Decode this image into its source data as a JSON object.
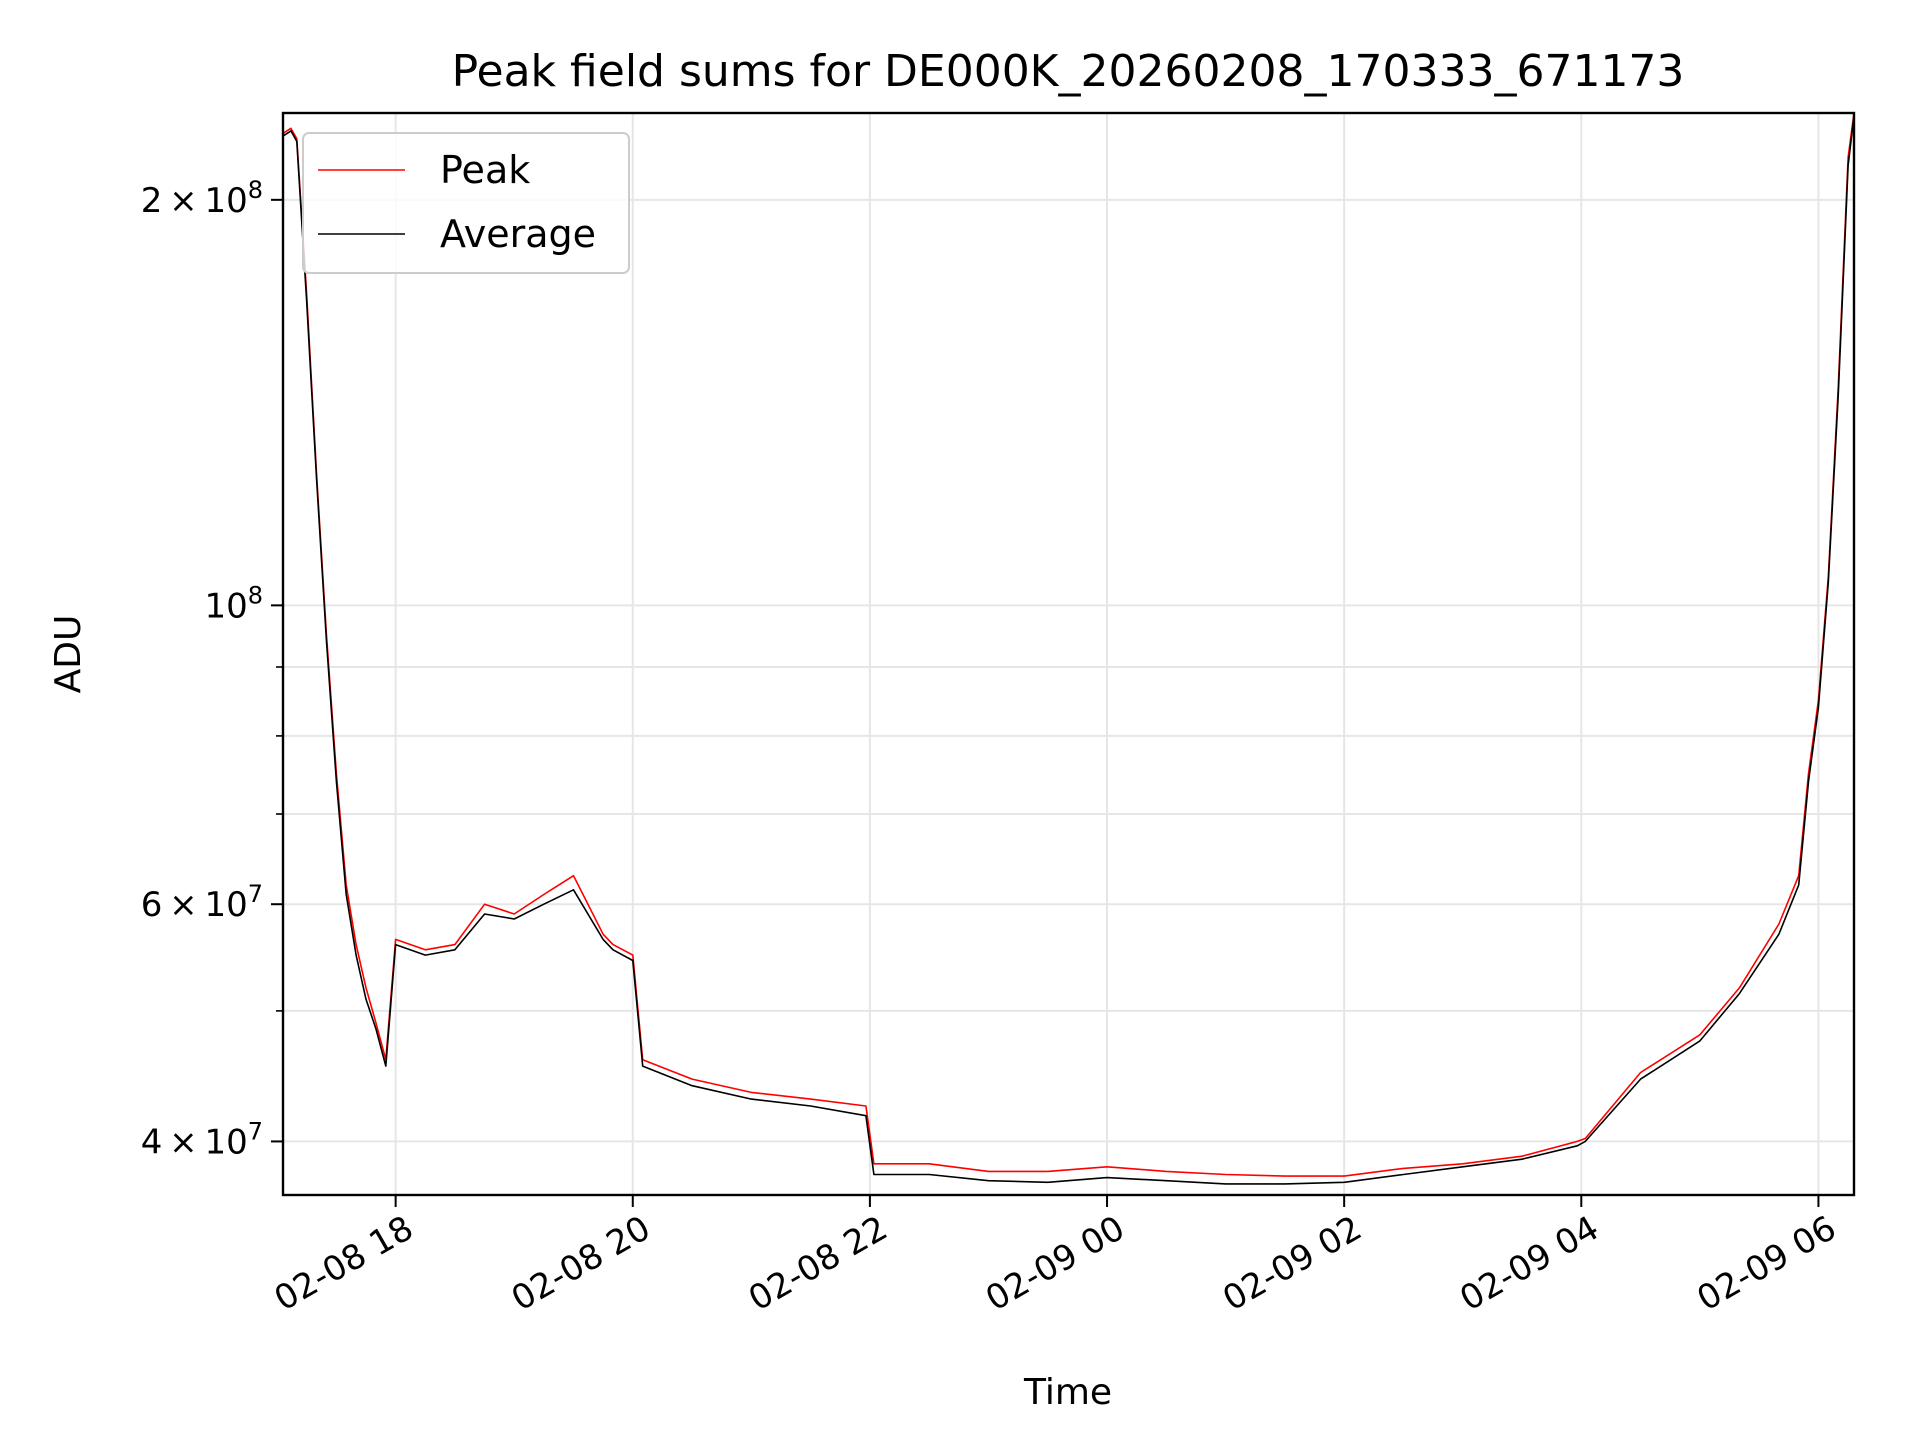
{
  "chart_data": {
    "type": "line",
    "title": "Peak field sums for DE000K_20260208_170333_671173",
    "xlabel": "Time",
    "ylabel": "ADU",
    "yscale": "log",
    "xlim": [
      "2026-02-08 17:03",
      "2026-02-09 06:18"
    ],
    "ylim": [
      36500000,
      232000000
    ],
    "grid": true,
    "legend": {
      "placement": "top-left",
      "entries": [
        "Peak",
        "Average"
      ]
    },
    "x_ticks": [
      "02-08 18",
      "02-08 20",
      "02-08 22",
      "02-09 00",
      "02-09 02",
      "02-09 04",
      "02-09 06"
    ],
    "y_ticks": [
      {
        "value": 40000000,
        "mantissa": "4",
        "exp": "7"
      },
      {
        "value": 60000000,
        "mantissa": "6",
        "exp": "7"
      },
      {
        "value": 100000000,
        "mantissa": "",
        "exp": "8"
      },
      {
        "value": 200000000,
        "mantissa": "2",
        "exp": "8"
      }
    ],
    "y_minor_ticks": [
      50000000,
      70000000,
      80000000,
      90000000
    ],
    "x_tick_values": [
      "2026-02-08 18:00",
      "2026-02-08 20:00",
      "2026-02-08 22:00",
      "2026-02-09 00:00",
      "2026-02-09 02:00",
      "2026-02-09 04:00",
      "2026-02-09 06:00"
    ],
    "series": [
      {
        "name": "Peak",
        "color": "#ff0000",
        "x": [
          "2026-02-08 17:03",
          "2026-02-08 17:07",
          "2026-02-08 17:10",
          "2026-02-08 17:15",
          "2026-02-08 17:20",
          "2026-02-08 17:25",
          "2026-02-08 17:30",
          "2026-02-08 17:35",
          "2026-02-08 17:40",
          "2026-02-08 17:45",
          "2026-02-08 17:50",
          "2026-02-08 17:55",
          "2026-02-08 18:00",
          "2026-02-08 18:15",
          "2026-02-08 18:30",
          "2026-02-08 18:45",
          "2026-02-08 19:00",
          "2026-02-08 19:15",
          "2026-02-08 19:30",
          "2026-02-08 19:45",
          "2026-02-08 19:50",
          "2026-02-08 20:00",
          "2026-02-08 20:05",
          "2026-02-08 20:30",
          "2026-02-08 21:00",
          "2026-02-08 21:30",
          "2026-02-08 21:58",
          "2026-02-08 22:02",
          "2026-02-08 22:30",
          "2026-02-08 23:00",
          "2026-02-08 23:30",
          "2026-02-09 00:00",
          "2026-02-09 00:30",
          "2026-02-09 01:00",
          "2026-02-09 01:30",
          "2026-02-09 02:00",
          "2026-02-09 02:30",
          "2026-02-09 03:00",
          "2026-02-09 03:30",
          "2026-02-09 03:58",
          "2026-02-09 04:02",
          "2026-02-09 04:30",
          "2026-02-09 05:00",
          "2026-02-09 05:20",
          "2026-02-09 05:40",
          "2026-02-09 05:50",
          "2026-02-09 05:55",
          "2026-02-09 06:00",
          "2026-02-09 06:05",
          "2026-02-09 06:10",
          "2026-02-09 06:15",
          "2026-02-09 06:18"
        ],
        "values": [
          224000000,
          226000000,
          222000000,
          170000000,
          125000000,
          95000000,
          75000000,
          62000000,
          56000000,
          52000000,
          49000000,
          46000000,
          56500000,
          55500000,
          56000000,
          60000000,
          59000000,
          61000000,
          63000000,
          57000000,
          56000000,
          55000000,
          46000000,
          44500000,
          43500000,
          43000000,
          42500000,
          38500000,
          38500000,
          38000000,
          38000000,
          38300000,
          38000000,
          37800000,
          37700000,
          37700000,
          38200000,
          38500000,
          39000000,
          40000000,
          40200000,
          45000000,
          48000000,
          52000000,
          58000000,
          63000000,
          75000000,
          85000000,
          105000000,
          145000000,
          215000000,
          232000000
        ]
      },
      {
        "name": "Average",
        "color": "#000000",
        "x": [
          "2026-02-08 17:03",
          "2026-02-08 17:07",
          "2026-02-08 17:10",
          "2026-02-08 17:15",
          "2026-02-08 17:20",
          "2026-02-08 17:25",
          "2026-02-08 17:30",
          "2026-02-08 17:35",
          "2026-02-08 17:40",
          "2026-02-08 17:45",
          "2026-02-08 17:50",
          "2026-02-08 17:55",
          "2026-02-08 18:00",
          "2026-02-08 18:15",
          "2026-02-08 18:30",
          "2026-02-08 18:45",
          "2026-02-08 19:00",
          "2026-02-08 19:15",
          "2026-02-08 19:30",
          "2026-02-08 19:45",
          "2026-02-08 19:50",
          "2026-02-08 20:00",
          "2026-02-08 20:05",
          "2026-02-08 20:30",
          "2026-02-08 21:00",
          "2026-02-08 21:30",
          "2026-02-08 21:58",
          "2026-02-08 22:02",
          "2026-02-08 22:30",
          "2026-02-08 23:00",
          "2026-02-08 23:30",
          "2026-02-09 00:00",
          "2026-02-09 00:30",
          "2026-02-09 01:00",
          "2026-02-09 01:30",
          "2026-02-09 02:00",
          "2026-02-09 02:30",
          "2026-02-09 03:00",
          "2026-02-09 03:30",
          "2026-02-09 03:58",
          "2026-02-09 04:02",
          "2026-02-09 04:30",
          "2026-02-09 05:00",
          "2026-02-09 05:20",
          "2026-02-09 05:40",
          "2026-02-09 05:50",
          "2026-02-09 05:55",
          "2026-02-09 06:00",
          "2026-02-09 06:05",
          "2026-02-09 06:10",
          "2026-02-09 06:15",
          "2026-02-09 06:18"
        ],
        "values": [
          223000000,
          225000000,
          221000000,
          168000000,
          124000000,
          94000000,
          74000000,
          61000000,
          55000000,
          51000000,
          48500000,
          45500000,
          56000000,
          55000000,
          55500000,
          59000000,
          58500000,
          60000000,
          61500000,
          56500000,
          55500000,
          54500000,
          45500000,
          44000000,
          43000000,
          42500000,
          41800000,
          37800000,
          37800000,
          37400000,
          37300000,
          37600000,
          37400000,
          37200000,
          37200000,
          37300000,
          37800000,
          38300000,
          38800000,
          39700000,
          40000000,
          44500000,
          47500000,
          51500000,
          57000000,
          62000000,
          74000000,
          84000000,
          104000000,
          143000000,
          212000000,
          231000000
        ]
      }
    ]
  }
}
